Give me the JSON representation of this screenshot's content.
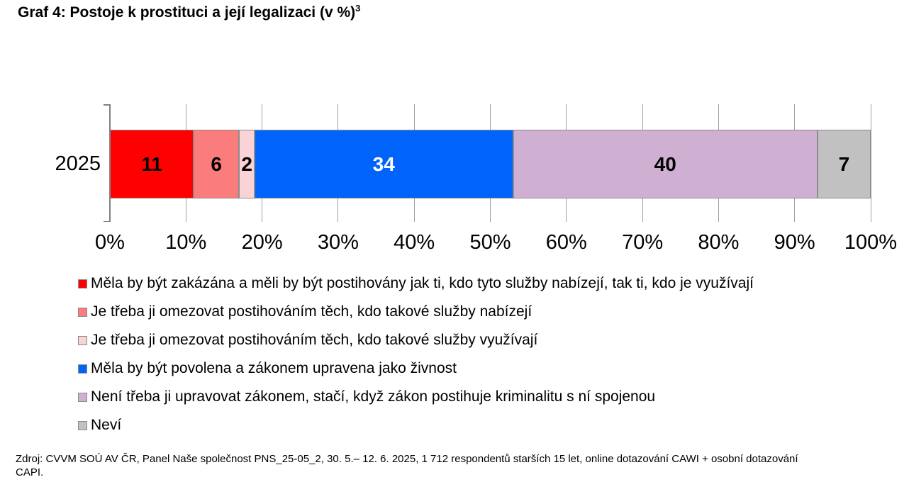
{
  "title": {
    "text": "Graf 4: Postoje k prostituci a její legalizaci (v %)",
    "superscript": "3"
  },
  "chart_data": {
    "type": "bar",
    "stacked": true,
    "orientation": "horizontal",
    "title": "Graf 4: Postoje k prostituci a její legalizaci (v %)",
    "categories": [
      "2025"
    ],
    "series": [
      {
        "name": "Měla by být zakázána a měli by být postihovány jak ti, kdo tyto služby nabízejí, tak ti, kdo je využívají",
        "values": [
          11
        ],
        "color": "#FF0000",
        "label_color": "#000000"
      },
      {
        "name": "Je třeba ji omezovat postihováním těch, kdo takové služby nabízejí",
        "values": [
          6
        ],
        "color": "#FA7C7C",
        "label_color": "#000000"
      },
      {
        "name": "Je třeba ji omezovat postihováním těch, kdo takové služby využívají",
        "values": [
          2
        ],
        "color": "#FAD3D6",
        "label_color": "#000000"
      },
      {
        "name": "Měla by být povolena a zákonem upravena jako živnost",
        "values": [
          34
        ],
        "color": "#0064FA",
        "label_color": "#FFFFFF"
      },
      {
        "name": "Není třeba ji upravovat zákonem, stačí, když zákon postihuje kriminalitu s ní spojenou",
        "values": [
          40
        ],
        "color": "#CFB0D3",
        "label_color": "#000000"
      },
      {
        "name": "Neví",
        "values": [
          7
        ],
        "color": "#C1C1C1",
        "label_color": "#000000"
      }
    ],
    "x_ticks": [
      "0%",
      "10%",
      "20%",
      "30%",
      "40%",
      "50%",
      "60%",
      "70%",
      "80%",
      "90%",
      "100%"
    ],
    "xlim": [
      0,
      100
    ],
    "grid": true,
    "legend_position": "bottom",
    "bar_outline_color": "#8C8C8C",
    "gridline_color": "#A0A0A0"
  },
  "source": {
    "line1": "Zdroj: CVVM SOÚ AV ČR, Panel Naše společnost PNS_25-05_2, 30. 5.– 12. 6. 2025, 1 712 respondentů starších 15 let, online dotazování CAWI + osobní dotazování",
    "line2": "CAPI."
  }
}
